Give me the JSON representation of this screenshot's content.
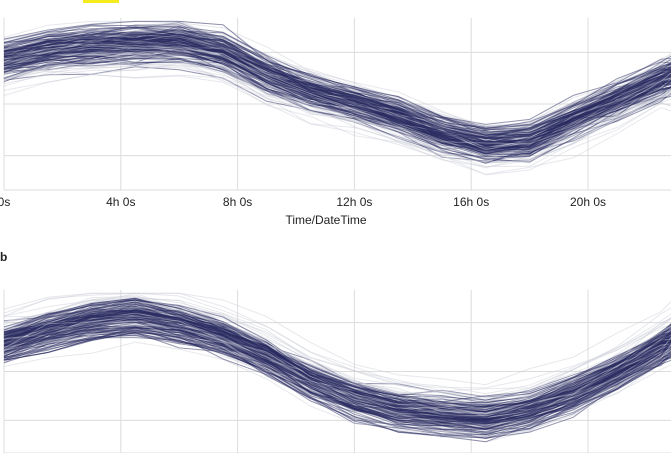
{
  "highlight_color": "#f5ea1c",
  "panel_b_label": "b",
  "colors": {
    "dark_line": "#2a2b62",
    "light_line": "#c9ccd8",
    "grid": "#dcdcdc",
    "axis_text": "#222222"
  },
  "chart_data": [
    {
      "type": "line",
      "title": "",
      "xlabel": "Time/DateTime",
      "ylabel": "",
      "x_ticks": [
        "0s",
        "4h 0s",
        "8h 0s",
        "12h 0s",
        "16h 0s",
        "20h 0s"
      ],
      "x_tick_hours": [
        0,
        4,
        8,
        12,
        16,
        20
      ],
      "xlim_hours": [
        0,
        23
      ],
      "ylim": [
        0,
        1
      ],
      "grid": true,
      "legend": "none",
      "series_count": 180,
      "x_hours": [
        0,
        1.5,
        3,
        4.5,
        6,
        7.5,
        9,
        10.5,
        12,
        13.5,
        15,
        16.5,
        18,
        19.5,
        21,
        22.5,
        23
      ],
      "mean_profile": [
        0.75,
        0.8,
        0.83,
        0.84,
        0.85,
        0.79,
        0.66,
        0.56,
        0.5,
        0.42,
        0.32,
        0.26,
        0.28,
        0.4,
        0.51,
        0.63,
        0.66
      ]
    },
    {
      "type": "line",
      "title": "",
      "xlabel": "",
      "ylabel": "",
      "x_tick_hours": [
        0,
        4,
        8,
        12,
        16,
        20
      ],
      "xlim_hours": [
        0,
        23
      ],
      "ylim": [
        0,
        1
      ],
      "grid": true,
      "legend": "none",
      "series_count": 180,
      "x_hours": [
        0,
        1.5,
        3,
        4.5,
        6,
        7.5,
        9,
        10.5,
        12,
        13.5,
        15,
        16.5,
        18,
        19.5,
        21,
        22.5,
        23
      ],
      "mean_profile": [
        0.68,
        0.76,
        0.82,
        0.85,
        0.8,
        0.72,
        0.6,
        0.45,
        0.34,
        0.27,
        0.24,
        0.22,
        0.27,
        0.37,
        0.5,
        0.66,
        0.72
      ]
    }
  ]
}
